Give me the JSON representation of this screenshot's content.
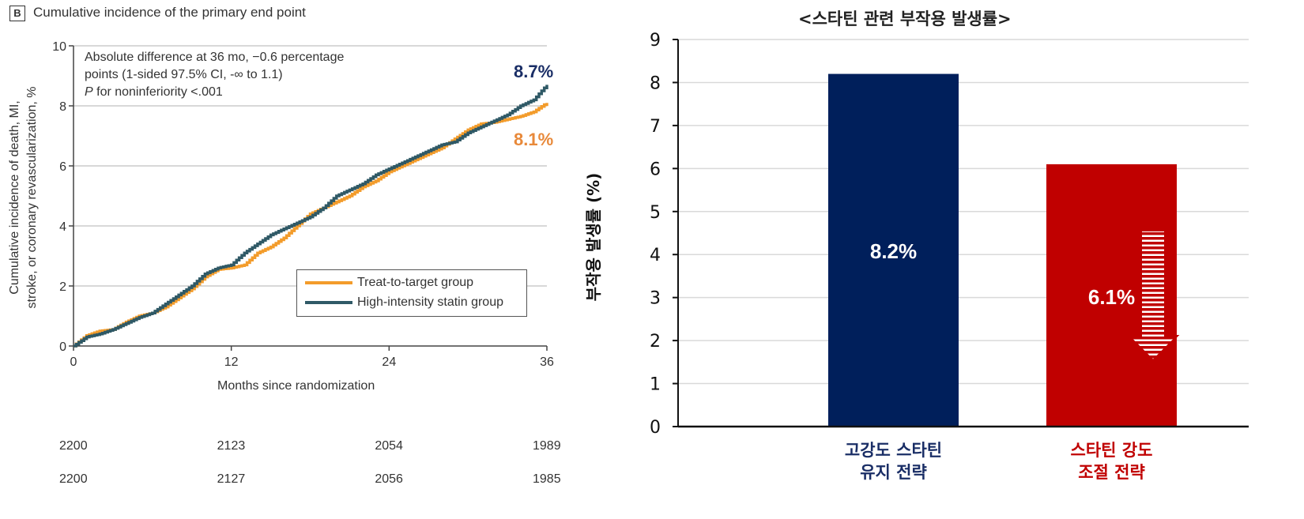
{
  "chart_data": [
    {
      "type": "line",
      "panel_label": "B",
      "title": "Cumulative incidence of the primary end point",
      "xlabel": "Months since randomization",
      "ylabel_lines": [
        "Cumulative incidence of death, MI,",
        "stroke, or coronary revascularization, %"
      ],
      "xlim": [
        0,
        36
      ],
      "ylim": [
        0,
        10
      ],
      "xticks": [
        0,
        12,
        24,
        36
      ],
      "yticks": [
        0,
        2,
        4,
        6,
        8,
        10
      ],
      "grid": "horizontal",
      "annotation": {
        "line1": "Absolute difference at 36 mo, −0.6 percentage",
        "line2": "points (1-sided 97.5% CI, -∞ to 1.1)",
        "line3_italic": "P",
        "line3_rest": " for noninferiority <.001"
      },
      "legend_position": "bottom-right",
      "series": [
        {
          "name": "Treat-to-target group",
          "color": "#f39c2b",
          "end_label": "8.1%",
          "end_label_color": "#e8893a",
          "x": [
            0,
            1,
            2,
            3,
            4,
            5,
            6,
            7,
            8,
            9,
            10,
            11,
            12,
            13,
            14,
            15,
            16,
            17,
            18,
            19,
            20,
            21,
            22,
            23,
            24,
            25,
            26,
            27,
            28,
            29,
            30,
            31,
            32,
            33,
            34,
            35,
            36
          ],
          "y": [
            0,
            0.35,
            0.5,
            0.55,
            0.8,
            1.0,
            1.1,
            1.3,
            1.6,
            1.9,
            2.3,
            2.55,
            2.6,
            2.7,
            3.1,
            3.3,
            3.6,
            4.0,
            4.4,
            4.6,
            4.8,
            5.0,
            5.3,
            5.5,
            5.8,
            6.0,
            6.2,
            6.4,
            6.6,
            6.9,
            7.2,
            7.4,
            7.45,
            7.55,
            7.65,
            7.8,
            8.1
          ]
        },
        {
          "name": "High-intensity statin group",
          "color": "#2f5966",
          "end_label": "8.7%",
          "end_label_color": "#1a2e66",
          "x": [
            0,
            1,
            2,
            3,
            4,
            5,
            6,
            7,
            8,
            9,
            10,
            11,
            12,
            13,
            14,
            15,
            16,
            17,
            18,
            19,
            20,
            21,
            22,
            23,
            24,
            25,
            26,
            27,
            28,
            29,
            30,
            31,
            32,
            33,
            34,
            35,
            36
          ],
          "y": [
            0,
            0.3,
            0.4,
            0.55,
            0.75,
            0.95,
            1.1,
            1.4,
            1.7,
            2.0,
            2.4,
            2.6,
            2.7,
            3.1,
            3.4,
            3.7,
            3.9,
            4.1,
            4.3,
            4.6,
            5.0,
            5.2,
            5.4,
            5.7,
            5.9,
            6.1,
            6.3,
            6.5,
            6.7,
            6.8,
            7.1,
            7.3,
            7.5,
            7.7,
            8.0,
            8.2,
            8.7
          ]
        }
      ],
      "risk_table": {
        "x": [
          0,
          12,
          24,
          36
        ],
        "rows": [
          {
            "values": [
              "2200",
              "2123",
              "2054",
              "1989"
            ]
          },
          {
            "values": [
              "2200",
              "2127",
              "2056",
              "1985"
            ]
          }
        ]
      }
    },
    {
      "type": "bar",
      "title": "<스타틴 관련 부작용 발생률>",
      "ylabel": "부작용 발생률 (%)",
      "xlabel": "",
      "ylim": [
        0,
        9
      ],
      "yticks": [
        0,
        1,
        2,
        3,
        4,
        5,
        6,
        7,
        8,
        9
      ],
      "grid": "horizontal",
      "categories": [
        {
          "line1": "고강도 스타틴",
          "line2": "유지 전략",
          "color": "#1a2e66"
        },
        {
          "line1": "스타틴 강도",
          "line2": "조절 전략",
          "color": "#c00000"
        }
      ],
      "values": [
        8.2,
        6.1
      ],
      "data_labels": [
        "8.2%",
        "6.1%"
      ],
      "bar_colors": [
        "#001f5b",
        "#c00000"
      ],
      "annotation": "decrease-arrow",
      "annotation_color": "#c00000"
    }
  ]
}
